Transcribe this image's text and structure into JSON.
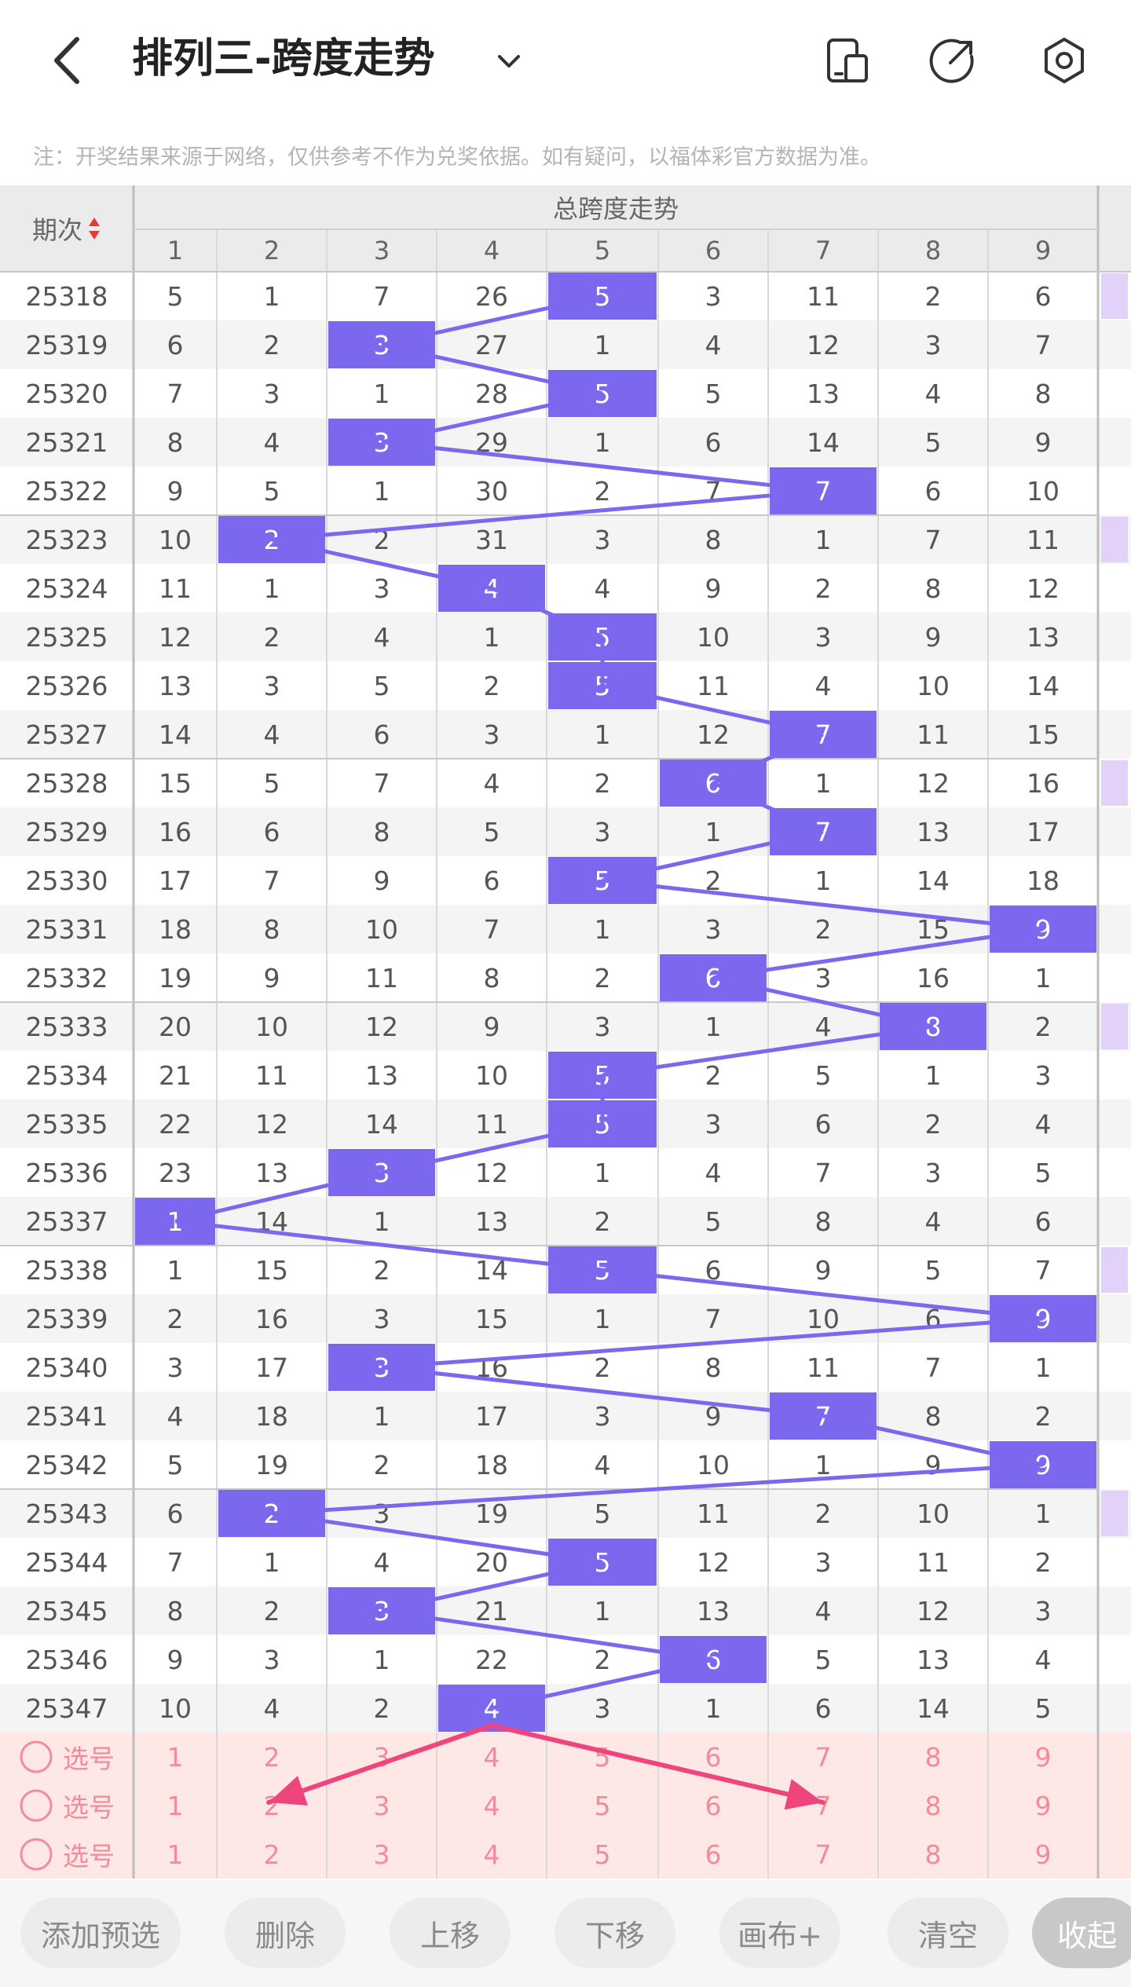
{
  "header": {
    "title": "排列三-跨度走势",
    "back_icon": "back-arrow-icon",
    "dropdown_icon": "chevron-down-icon",
    "actions": [
      "phone-layout-icon",
      "share-icon",
      "settings-icon"
    ]
  },
  "notice": "注：开奖结果来源于网络，仅供参考不作为兑奖依据。如有疑问，以福体彩官方数据为准。",
  "table": {
    "period_header": "期次",
    "section_header": "总跨度走势",
    "columns": [
      "1",
      "2",
      "3",
      "4",
      "5",
      "6",
      "7",
      "8",
      "9"
    ],
    "rows": [
      {
        "period": "25318",
        "values": [
          "5",
          "1",
          "7",
          "26",
          "5",
          "3",
          "11",
          "2",
          "6"
        ],
        "hit": 5
      },
      {
        "period": "25319",
        "values": [
          "6",
          "2",
          "3",
          "27",
          "1",
          "4",
          "12",
          "3",
          "7"
        ],
        "hit": 3
      },
      {
        "period": "25320",
        "values": [
          "7",
          "3",
          "1",
          "28",
          "5",
          "5",
          "13",
          "4",
          "8"
        ],
        "hit": 5
      },
      {
        "period": "25321",
        "values": [
          "8",
          "4",
          "3",
          "29",
          "1",
          "6",
          "14",
          "5",
          "9"
        ],
        "hit": 3
      },
      {
        "period": "25322",
        "values": [
          "9",
          "5",
          "1",
          "30",
          "2",
          "7",
          "7",
          "6",
          "10"
        ],
        "hit": 7
      },
      {
        "period": "25323",
        "values": [
          "10",
          "2",
          "2",
          "31",
          "3",
          "8",
          "1",
          "7",
          "11"
        ],
        "hit": 2
      },
      {
        "period": "25324",
        "values": [
          "11",
          "1",
          "3",
          "4",
          "4",
          "9",
          "2",
          "8",
          "12"
        ],
        "hit": 4
      },
      {
        "period": "25325",
        "values": [
          "12",
          "2",
          "4",
          "1",
          "5",
          "10",
          "3",
          "9",
          "13"
        ],
        "hit": 5
      },
      {
        "period": "25326",
        "values": [
          "13",
          "3",
          "5",
          "2",
          "5",
          "11",
          "4",
          "10",
          "14"
        ],
        "hit": 5
      },
      {
        "period": "25327",
        "values": [
          "14",
          "4",
          "6",
          "3",
          "1",
          "12",
          "7",
          "11",
          "15"
        ],
        "hit": 7
      },
      {
        "period": "25328",
        "values": [
          "15",
          "5",
          "7",
          "4",
          "2",
          "6",
          "1",
          "12",
          "16"
        ],
        "hit": 6
      },
      {
        "period": "25329",
        "values": [
          "16",
          "6",
          "8",
          "5",
          "3",
          "1",
          "7",
          "13",
          "17"
        ],
        "hit": 7
      },
      {
        "period": "25330",
        "values": [
          "17",
          "7",
          "9",
          "6",
          "5",
          "2",
          "1",
          "14",
          "18"
        ],
        "hit": 5
      },
      {
        "period": "25331",
        "values": [
          "18",
          "8",
          "10",
          "7",
          "1",
          "3",
          "2",
          "15",
          "9"
        ],
        "hit": 9
      },
      {
        "period": "25332",
        "values": [
          "19",
          "9",
          "11",
          "8",
          "2",
          "6",
          "3",
          "16",
          "1"
        ],
        "hit": 6
      },
      {
        "period": "25333",
        "values": [
          "20",
          "10",
          "12",
          "9",
          "3",
          "1",
          "4",
          "8",
          "2"
        ],
        "hit": 8
      },
      {
        "period": "25334",
        "values": [
          "21",
          "11",
          "13",
          "10",
          "5",
          "2",
          "5",
          "1",
          "3"
        ],
        "hit": 5
      },
      {
        "period": "25335",
        "values": [
          "22",
          "12",
          "14",
          "11",
          "5",
          "3",
          "6",
          "2",
          "4"
        ],
        "hit": 5
      },
      {
        "period": "25336",
        "values": [
          "23",
          "13",
          "3",
          "12",
          "1",
          "4",
          "7",
          "3",
          "5"
        ],
        "hit": 3
      },
      {
        "period": "25337",
        "values": [
          "1",
          "14",
          "1",
          "13",
          "2",
          "5",
          "8",
          "4",
          "6"
        ],
        "hit": 1
      },
      {
        "period": "25338",
        "values": [
          "1",
          "15",
          "2",
          "14",
          "5",
          "6",
          "9",
          "5",
          "7"
        ],
        "hit": 5
      },
      {
        "period": "25339",
        "values": [
          "2",
          "16",
          "3",
          "15",
          "1",
          "7",
          "10",
          "6",
          "9"
        ],
        "hit": 9
      },
      {
        "period": "25340",
        "values": [
          "3",
          "17",
          "3",
          "16",
          "2",
          "8",
          "11",
          "7",
          "1"
        ],
        "hit": 3
      },
      {
        "period": "25341",
        "values": [
          "4",
          "18",
          "1",
          "17",
          "3",
          "9",
          "7",
          "8",
          "2"
        ],
        "hit": 7
      },
      {
        "period": "25342",
        "values": [
          "5",
          "19",
          "2",
          "18",
          "4",
          "10",
          "1",
          "9",
          "9"
        ],
        "hit": 9
      },
      {
        "period": "25343",
        "values": [
          "6",
          "2",
          "3",
          "19",
          "5",
          "11",
          "2",
          "10",
          "1"
        ],
        "hit": 2
      },
      {
        "period": "25344",
        "values": [
          "7",
          "1",
          "4",
          "20",
          "5",
          "12",
          "3",
          "11",
          "2"
        ],
        "hit": 5
      },
      {
        "period": "25345",
        "values": [
          "8",
          "2",
          "3",
          "21",
          "1",
          "13",
          "4",
          "12",
          "3"
        ],
        "hit": 3
      },
      {
        "period": "25346",
        "values": [
          "9",
          "3",
          "1",
          "22",
          "2",
          "6",
          "5",
          "13",
          "4"
        ],
        "hit": 6
      },
      {
        "period": "25347",
        "values": [
          "10",
          "4",
          "2",
          "4",
          "3",
          "1",
          "6",
          "14",
          "5"
        ],
        "hit": 4
      }
    ],
    "select_rows": [
      {
        "label": "选号",
        "values": [
          "1",
          "2",
          "3",
          "4",
          "5",
          "6",
          "7",
          "8",
          "9"
        ]
      },
      {
        "label": "选号",
        "values": [
          "1",
          "2",
          "3",
          "4",
          "5",
          "6",
          "7",
          "8",
          "9"
        ]
      },
      {
        "label": "选号",
        "values": [
          "1",
          "2",
          "3",
          "4",
          "5",
          "6",
          "7",
          "8",
          "9"
        ]
      }
    ]
  },
  "buttons": {
    "add_preselect": "添加预选",
    "delete": "删除",
    "move_up": "上移",
    "move_down": "下移",
    "canvas_plus": "画布+",
    "clear": "清空",
    "collapse": "收起"
  },
  "colors": {
    "hit": "#7b68ee",
    "line": "#7b68ee",
    "annotation_arrow": "#f0457c",
    "select_bg": "#fde8e5",
    "select_text": "#f28b9b",
    "right_strip": "#e2d2fa"
  }
}
